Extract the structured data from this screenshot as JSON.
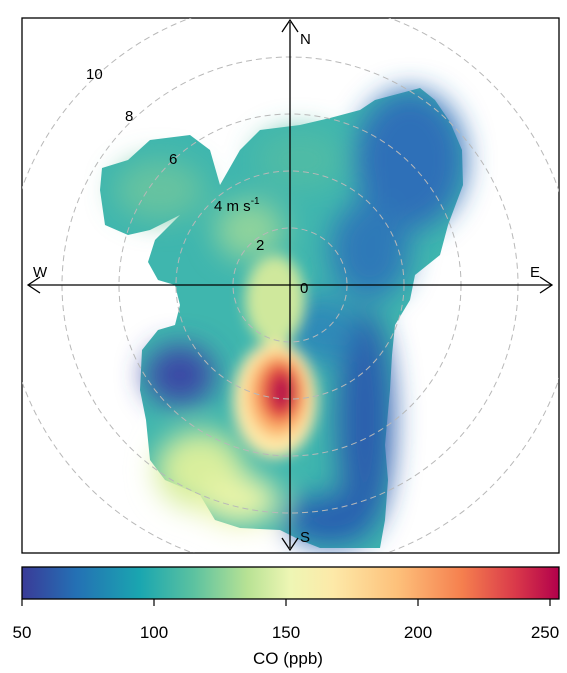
{
  "chart_data": {
    "type": "heatmap",
    "subtype": "polar",
    "title": "",
    "directions": [
      "N",
      "E",
      "S",
      "W"
    ],
    "radial": {
      "unit_text": "4 m s",
      "unit_superscript": "-1",
      "ring_values": [
        0,
        2,
        4,
        6,
        8,
        10
      ],
      "ring_labels": [
        "0",
        "2",
        "",
        "6",
        "8",
        "10"
      ]
    },
    "colorbar": {
      "label": "CO (ppb)",
      "ticks": [
        "50",
        "100",
        "150",
        "200",
        "250"
      ],
      "range": [
        50,
        254
      ],
      "colors": [
        "#3a3b98",
        "#2470b4",
        "#1aa6b0",
        "#5cc2a0",
        "#b8e294",
        "#eef6b4",
        "#fde9a8",
        "#fdc07a",
        "#f57f4e",
        "#d9384a",
        "#b2004b"
      ]
    },
    "hotspots": [
      {
        "direction": "S",
        "speed": 2.5,
        "value": 254
      },
      {
        "direction": "S",
        "speed": 3.7,
        "value": 220
      },
      {
        "direction": "SSW",
        "speed": 5.5,
        "value": 165
      },
      {
        "direction": "SW",
        "speed": 4.5,
        "value": 60
      },
      {
        "direction": "NE",
        "speed": 8,
        "value": 70
      },
      {
        "direction": "N",
        "speed": 6,
        "value": 100
      },
      {
        "direction": "NW",
        "speed": 7,
        "value": 115
      },
      {
        "direction": "SE",
        "speed": 7,
        "value": 60
      }
    ]
  }
}
